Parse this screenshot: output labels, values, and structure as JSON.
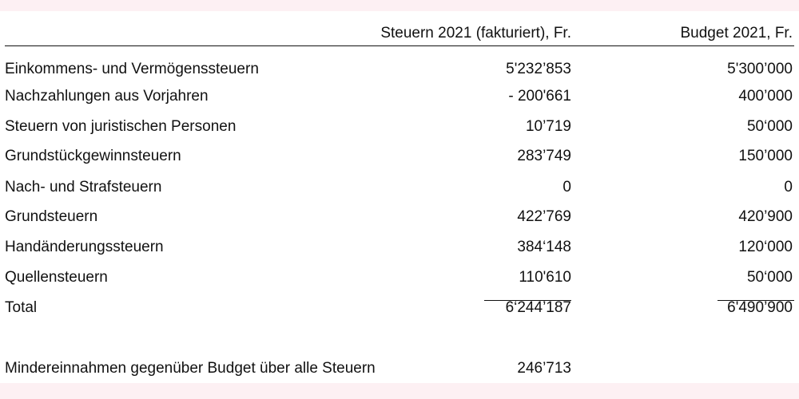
{
  "header": {
    "col1": "Steuern 2021 (fakturiert), Fr.",
    "col2": "Budget 2021, Fr."
  },
  "rows": [
    {
      "label": "Einkommens- und Vermögenssteuern",
      "steuern": "5'232’853",
      "budget": "5'300’000"
    },
    {
      "label": "Nachzahlungen aus Vorjahren",
      "steuern": "- 200'661",
      "budget": "400’000"
    },
    {
      "label": "Steuern von juristischen Personen",
      "steuern": "10’719",
      "budget": "50‘000"
    },
    {
      "label": "Grundstückgewinnsteuern",
      "steuern": "283’749",
      "budget": "150’000"
    },
    {
      "label": "Nach- und Strafsteuern",
      "steuern": "0",
      "budget": "0"
    },
    {
      "label": "Grundsteuern",
      "steuern": "422’769",
      "budget": "420’900"
    },
    {
      "label": "Handänderungssteuern",
      "steuern": "384‘148",
      "budget": "120‘000"
    },
    {
      "label": "Quellensteuern",
      "steuern": "110'610",
      "budget": "50‘000"
    }
  ],
  "total": {
    "label": "Total",
    "steuern": "6‘244’187",
    "budget": "6'490’900"
  },
  "summary": {
    "label": "Mindereinnahmen gegenüber Budget über alle Steuern",
    "value": "246’713"
  }
}
